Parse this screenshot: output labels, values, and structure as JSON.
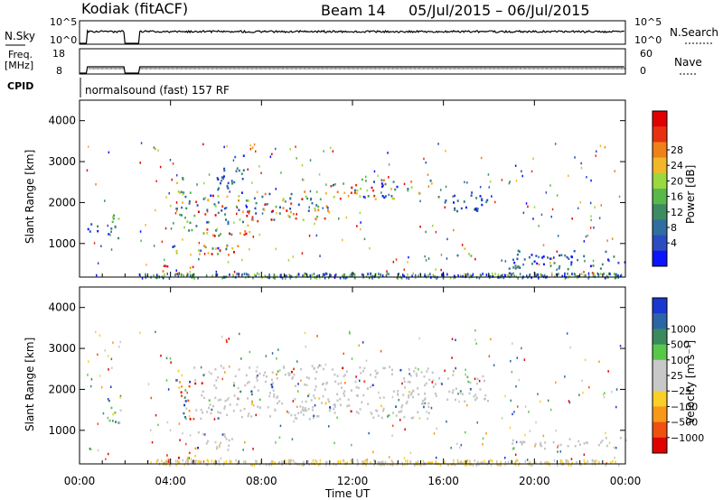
{
  "header": {
    "station": "Kodiak (fitACF)",
    "beam": "Beam 14",
    "date_range": "05/Jul/2015 – 06/Jul/2015"
  },
  "top_panels": {
    "nsky_label": "N.Sky",
    "nsky_ticks": [
      "10^5",
      "10^0"
    ],
    "nsearch_label": "N.Search",
    "nsearch_ticks": [
      "10^5",
      "10^0"
    ],
    "freq_label": "Freq.",
    "freq_unit": "[MHz]",
    "freq_ticks": [
      "18",
      "8"
    ],
    "nave_label": "Nave",
    "nave_ticks": [
      "60",
      "0"
    ],
    "cpid_label": "CPID",
    "cpid_text": "normalsound (fast) 157 RF",
    "data_gaps_hours": [
      [
        0,
        0.3
      ],
      [
        2.0,
        2.6
      ]
    ]
  },
  "x_axis": {
    "label": "Time UT",
    "ticks": [
      "00:00",
      "04:00",
      "08:00",
      "12:00",
      "16:00",
      "20:00",
      "00:00"
    ],
    "range_hours": [
      0,
      24
    ]
  },
  "chart_data": [
    {
      "type": "heatmap",
      "name": "power",
      "ylabel": "Slant Range [km]",
      "yticks": [
        "1000",
        "2000",
        "3000",
        "4000"
      ],
      "ylim_km": [
        180,
        4500
      ],
      "colorbar_label": "Power [dB]",
      "colorbar_ticks": [
        "4",
        "8",
        "12",
        "16",
        "20",
        "24",
        "28"
      ],
      "colorbar_colors": [
        "#0a14ff",
        "#2a4cc0",
        "#2e6fa0",
        "#3e8a62",
        "#58b84a",
        "#9ad840",
        "#f0b828",
        "#f08018",
        "#e83010",
        "#e00000"
      ],
      "echo_regions": [
        {
          "t0": 0.3,
          "t1": 1.3,
          "r0": 1250,
          "r1": 1500,
          "level": "low"
        },
        {
          "t0": 1.2,
          "t1": 1.8,
          "r0": 1150,
          "r1": 1800,
          "level": "mid"
        },
        {
          "t0": 3.6,
          "t1": 5.2,
          "r0": 280,
          "r1": 480,
          "level": "high"
        },
        {
          "t0": 4.2,
          "t1": 5.0,
          "r0": 1300,
          "r1": 2700,
          "level": "mid"
        },
        {
          "t0": 5.0,
          "t1": 7.8,
          "r0": 1200,
          "r1": 2200,
          "level": "mixed"
        },
        {
          "t0": 6.0,
          "t1": 7.2,
          "r0": 2200,
          "r1": 3200,
          "level": "low"
        },
        {
          "t0": 7.5,
          "t1": 11.0,
          "r0": 1600,
          "r1": 2300,
          "level": "mixed"
        },
        {
          "t0": 11.0,
          "t1": 15.5,
          "r0": 2100,
          "r1": 2600,
          "level": "mixed"
        },
        {
          "t0": 15.5,
          "t1": 18.0,
          "r0": 1800,
          "r1": 2300,
          "level": "low"
        },
        {
          "t0": 16.3,
          "t1": 17.2,
          "r0": 720,
          "r1": 900,
          "level": "mid"
        },
        {
          "t0": 18.8,
          "t1": 24.0,
          "r0": 400,
          "r1": 850,
          "level": "low"
        },
        {
          "t0": 3.5,
          "t1": 7.0,
          "r0": 700,
          "r1": 1000,
          "level": "mixed"
        }
      ]
    },
    {
      "type": "heatmap",
      "name": "velocity",
      "ylabel": "Slant Range [km]",
      "yticks": [
        "1000",
        "2000",
        "3000",
        "4000"
      ],
      "ylim_km": [
        180,
        4500
      ],
      "colorbar_label": "Velocity [m s⁻¹]",
      "colorbar_ticks": [
        "1000",
        "500",
        "100",
        "25",
        "−25",
        "−100",
        "−500",
        "−1000"
      ],
      "colorbar_colors": [
        "#1838d0",
        "#2c64a8",
        "#3a8a5e",
        "#58c84a",
        "#c8c8c8",
        "#c8c8c8",
        "#f8d028",
        "#f89818",
        "#f05010",
        "#e00000"
      ],
      "echo_regions": [
        {
          "t0": 1.2,
          "t1": 1.8,
          "r0": 1150,
          "r1": 1800,
          "level": "mixed"
        },
        {
          "t0": 3.6,
          "t1": 5.2,
          "r0": 250,
          "r1": 500,
          "level": "negative"
        },
        {
          "t0": 4.2,
          "t1": 5.0,
          "r0": 1300,
          "r1": 2500,
          "level": "mixed"
        },
        {
          "t0": 5.0,
          "t1": 15.5,
          "r0": 1300,
          "r1": 2600,
          "level": "grey"
        },
        {
          "t0": 15.5,
          "t1": 18.0,
          "r0": 1700,
          "r1": 2400,
          "level": "grey"
        },
        {
          "t0": 18.8,
          "t1": 24.0,
          "r0": 550,
          "r1": 850,
          "level": "grey"
        },
        {
          "t0": 5.0,
          "t1": 7.0,
          "r0": 550,
          "r1": 1000,
          "level": "grey"
        }
      ]
    }
  ]
}
